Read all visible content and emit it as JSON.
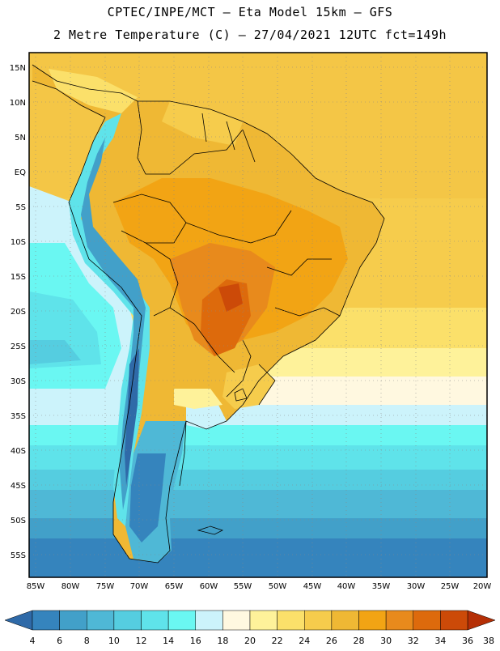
{
  "header": {
    "line1": "CPTEC/INPE/MCT –  Eta Model 15km – GFS",
    "line2": "2 Metre Temperature (C) – 27/04/2021 12UTC fct=149h"
  },
  "map": {
    "lat_labels": [
      "15N",
      "10N",
      "5N",
      "EQ",
      "5S",
      "10S",
      "15S",
      "20S",
      "25S",
      "30S",
      "35S",
      "40S",
      "45S",
      "50S",
      "55S"
    ],
    "lon_labels": [
      "85W",
      "80W",
      "75W",
      "70W",
      "65W",
      "60W",
      "55W",
      "50W",
      "45W",
      "40W",
      "35W",
      "30W",
      "25W",
      "20W"
    ]
  },
  "legend": {
    "values": [
      "4",
      "6",
      "8",
      "10",
      "12",
      "14",
      "16",
      "18",
      "20",
      "22",
      "24",
      "26",
      "28",
      "30",
      "32",
      "34",
      "36",
      "38"
    ],
    "colors": [
      "#2f6aa8",
      "#3584bd",
      "#42a0c9",
      "#4fb8d6",
      "#55cde0",
      "#5fe3ea",
      "#6af7f2",
      "#ccf3fb",
      "#fff8e0",
      "#fef29a",
      "#fbe06a",
      "#f6cc4c",
      "#efb834",
      "#f2a414",
      "#e88a1c",
      "#dd6a0c",
      "#cc4a08",
      "#b52f06"
    ]
  }
}
